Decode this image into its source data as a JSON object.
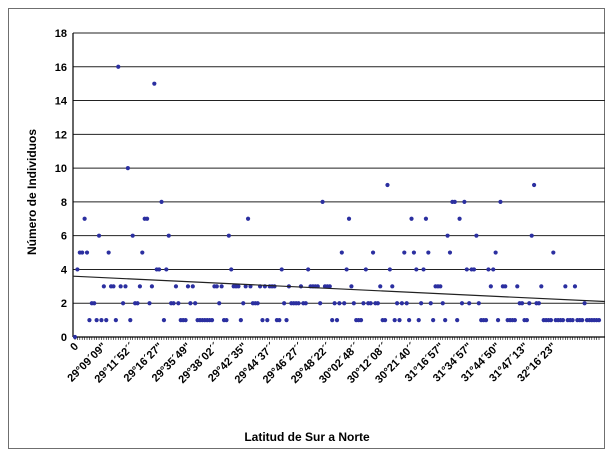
{
  "chart_data": {
    "type": "scatter",
    "title": "",
    "xlabel": "Latitud de Sur a Norte",
    "ylabel": "Número de Individuos",
    "ylim": [
      0,
      18
    ],
    "yticks": [
      0,
      2,
      4,
      6,
      8,
      10,
      12,
      14,
      16,
      18
    ],
    "grid": "horizontal",
    "legend": "none",
    "point_color": "#2b2fa0",
    "trendline": {
      "type": "linear",
      "y_start": 3.6,
      "y_end": 2.1,
      "color": "#222222"
    },
    "x_tick_labels": [
      "0",
      "29°09´09\"",
      "29°11´52´´",
      "29°16´27\"",
      "29°35´49\"",
      "29°38´02´´",
      "29°42´35\"",
      "29°44´37´´",
      "29°46´27´´",
      "29°48´22´´",
      "30°02´48´´",
      "30°12´08´´",
      "30°21´40´´",
      "31°16´57\"",
      "31°34´57\"",
      "31°44´50\"",
      "31°47´13\"",
      "32°16´23\""
    ],
    "values": [
      0,
      4,
      5,
      5,
      7,
      5,
      1,
      2,
      2,
      1,
      6,
      1,
      3,
      1,
      5,
      3,
      3,
      1,
      16,
      3,
      2,
      3,
      10,
      1,
      6,
      2,
      2,
      3,
      5,
      7,
      7,
      2,
      3,
      15,
      4,
      4,
      8,
      1,
      4,
      6,
      2,
      2,
      3,
      2,
      1,
      1,
      1,
      3,
      2,
      3,
      2,
      1,
      1,
      1,
      1,
      1,
      1,
      1,
      3,
      3,
      2,
      3,
      1,
      1,
      6,
      4,
      3,
      3,
      3,
      1,
      2,
      3,
      7,
      3,
      2,
      2,
      2,
      3,
      1,
      3,
      1,
      3,
      3,
      3,
      1,
      1,
      4,
      2,
      1,
      3,
      2,
      2,
      2,
      2,
      3,
      2,
      2,
      4,
      3,
      3,
      3,
      3,
      2,
      8,
      3,
      3,
      3,
      1,
      2,
      1,
      2,
      5,
      2,
      4,
      7,
      3,
      2,
      1,
      1,
      1,
      2,
      4,
      2,
      2,
      5,
      2,
      2,
      3,
      1,
      1,
      9,
      4,
      3,
      1,
      2,
      1,
      2,
      5,
      2,
      1,
      7,
      5,
      4,
      1,
      2,
      4,
      7,
      5,
      2,
      1,
      3,
      3,
      3,
      2,
      1,
      6,
      5,
      8,
      8,
      1,
      7,
      2,
      8,
      4,
      2,
      4,
      4,
      6,
      2,
      1,
      1,
      1,
      4,
      3,
      4,
      5,
      1,
      8,
      3,
      3,
      1,
      1,
      1,
      1,
      3,
      2,
      2,
      1,
      1,
      2,
      6,
      9,
      2,
      2,
      3,
      1,
      1,
      1,
      1,
      5,
      1,
      1,
      1,
      1,
      3,
      1,
      1,
      1,
      3,
      1,
      1,
      1,
      2,
      1,
      1,
      1,
      1,
      1,
      1
    ]
  }
}
